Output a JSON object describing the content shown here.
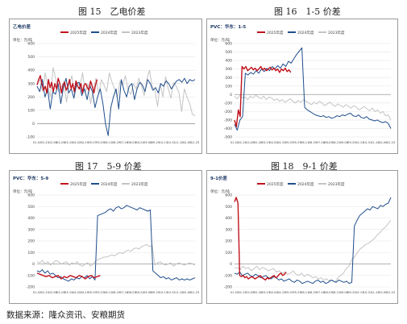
{
  "figures": [
    {
      "caption": "图 15　乙电价差"
    },
    {
      "caption": "图 16　1-5 价差"
    },
    {
      "caption": "图 17　5-9 价差"
    },
    {
      "caption": "图 18　9-1 价差"
    }
  ],
  "source_note": "数据来源：隆众资讯、安粮期货",
  "colors": {
    "s2025": "#c0121c",
    "s2024": "#1f4e8c",
    "s2023": "#c4c4c4",
    "grid": "#e6e6e6"
  },
  "chart_data": [
    {
      "type": "line",
      "title": "乙电价差",
      "unit": "单位：元/吨",
      "ylim": [
        -100,
        600
      ],
      "yticks": [
        -100,
        0,
        100,
        200,
        300,
        400,
        500,
        600
      ],
      "xticks": [
        "01-02",
        "01-21",
        "02-08",
        "02-26",
        "03-15",
        "04-02",
        "04-19",
        "05-07",
        "05-25",
        "06-11",
        "06-29",
        "07-16",
        "08-03",
        "08-21",
        "09-08",
        "09-25",
        "10-13",
        "10-31",
        "11-18",
        "12-06",
        "12-23"
      ],
      "series": [
        {
          "name": "2025年度",
          "color": "#c0121c",
          "start": 0.0,
          "values": [
            290,
            330,
            360,
            300,
            250,
            280,
            230,
            330,
            270,
            310,
            240,
            300,
            260,
            340,
            300,
            230,
            290,
            310,
            250,
            280,
            330,
            260,
            300,
            240,
            320,
            280,
            260,
            300,
            230,
            290,
            300,
            270,
            250,
            320,
            280,
            230,
            290,
            330
          ]
        },
        {
          "name": "2024年度",
          "color": "#1f4e8c",
          "start": 0.0,
          "values": [
            280,
            240,
            330,
            200,
            260,
            110,
            240,
            220,
            300,
            150,
            270,
            340,
            230,
            260,
            190,
            300,
            310,
            210,
            260,
            180,
            290,
            240,
            120,
            200,
            260,
            150,
            0,
            -90,
            120,
            200,
            260,
            110,
            330,
            250,
            200,
            280,
            300,
            180,
            260,
            310,
            290,
            240,
            330,
            300,
            250,
            270,
            230,
            300,
            280,
            320,
            300,
            260,
            290,
            320,
            330,
            310,
            340,
            300,
            330,
            320,
            330
          ]
        },
        {
          "name": "2023年度",
          "color": "#c4c4c4",
          "start": 0.0,
          "values": [
            300,
            330,
            240,
            380,
            280,
            200,
            420,
            330,
            240,
            270,
            320,
            160,
            290,
            360,
            210,
            310,
            280,
            380,
            230,
            300,
            150,
            260,
            340,
            220,
            330,
            290,
            240,
            380,
            310,
            260,
            200,
            320,
            290,
            360,
            250,
            220,
            300,
            260,
            340,
            280,
            210,
            330,
            400,
            280,
            250,
            130,
            300,
            200,
            350,
            260,
            190,
            310,
            280,
            230,
            90,
            260,
            200,
            150,
            70,
            60
          ]
        }
      ]
    },
    {
      "type": "line",
      "title": "PVC：华东：1-5",
      "unit": "单位：元/吨",
      "ylim": [
        -500,
        600
      ],
      "yticks": [
        -500,
        -400,
        -300,
        -200,
        -100,
        0,
        100,
        200,
        300,
        400,
        500,
        600
      ],
      "xticks": [
        "01-02",
        "01-21",
        "02-08",
        "02-26",
        "03-15",
        "04-02",
        "04-19",
        "05-07",
        "05-25",
        "06-11",
        "06-29",
        "07-16",
        "08-03",
        "08-21",
        "09-08",
        "09-25",
        "10-13",
        "10-31",
        "11-18",
        "12-06",
        "12-23"
      ],
      "series": [
        {
          "name": "2025年度",
          "color": "#c0121c",
          "start": 0.0,
          "values": [
            -300,
            -380,
            -180,
            -260,
            330,
            300,
            330,
            280,
            300,
            320,
            290,
            310,
            280,
            300,
            330,
            290,
            310,
            280,
            300,
            320,
            290,
            310,
            280,
            300,
            260,
            300,
            280,
            310,
            270,
            290,
            260
          ]
        },
        {
          "name": "2024年度",
          "color": "#1f4e8c",
          "start": 0.0,
          "values": [
            -350,
            -420,
            -300,
            -260,
            250,
            230,
            260,
            240,
            280,
            250,
            300,
            270,
            310,
            280,
            330,
            300,
            340,
            310,
            360,
            330,
            390,
            370,
            420,
            470,
            510,
            550,
            -150,
            -180,
            -200,
            -220,
            -240,
            -250,
            -260,
            -250,
            -270,
            -260,
            -280,
            -270,
            -250,
            -260,
            -240,
            -250,
            -230,
            -220,
            -250,
            -260,
            -240,
            -270,
            -280,
            -260,
            -290,
            -300,
            -310,
            -300,
            -320,
            -330,
            -320,
            -340,
            -400
          ]
        },
        {
          "name": "2023年度",
          "color": "#c4c4c4",
          "start": 0.0,
          "values": [
            -20,
            -50,
            -10,
            -40,
            -30,
            -60,
            -20,
            -40,
            -10,
            -30,
            -50,
            -20,
            -60,
            -30,
            -40,
            -70,
            -50,
            -80,
            -60,
            -90,
            -70,
            -50,
            -80,
            -100,
            -70,
            -90,
            -60,
            -80,
            -100,
            -120,
            -90,
            -110,
            -80,
            -100,
            -130,
            -110,
            -90,
            -120,
            -140,
            -110,
            -130,
            -150,
            -120,
            -140,
            -160,
            -130,
            -150,
            -180,
            -160,
            -140,
            -170,
            -190,
            -160,
            -200,
            -180,
            -220,
            -200,
            -250,
            -240,
            -300
          ]
        }
      ]
    },
    {
      "type": "line",
      "title": "PVC：华东：5-9",
      "unit": "单位：元/吨",
      "ylim": [
        -200,
        600
      ],
      "yticks": [
        -200,
        -100,
        0,
        100,
        200,
        300,
        400,
        500,
        600
      ],
      "xticks": [
        "01-02",
        "01-21",
        "02-08",
        "02-26",
        "03-15",
        "04-02",
        "04-19",
        "05-07",
        "05-25",
        "06-11",
        "06-29",
        "07-16",
        "08-03",
        "08-21",
        "09-08",
        "09-25",
        "10-13",
        "10-31",
        "11-18",
        "12-06",
        "12-23"
      ],
      "series": [
        {
          "name": "2025年度",
          "color": "#c0121c",
          "start": 0.0,
          "values": [
            -80,
            -90,
            -100,
            -110,
            -100,
            -120,
            -110,
            -100,
            -130,
            -110,
            -120,
            -100,
            -110,
            -120,
            -100,
            -110,
            -130,
            -110,
            -100,
            -120,
            -110,
            -100
          ]
        },
        {
          "name": "2024年度",
          "color": "#1f4e8c",
          "start": 0.0,
          "values": [
            -60,
            -70,
            -50,
            -80,
            -60,
            -90,
            -80,
            -100,
            -120,
            -110,
            -130,
            -140,
            -150,
            -130,
            -140,
            -120,
            -130,
            -110,
            -120,
            -100,
            -130,
            -110,
            -140,
            420,
            430,
            440,
            450,
            470,
            480,
            460,
            490,
            500,
            480,
            490,
            510,
            500,
            490,
            480,
            470,
            490,
            480,
            470,
            460,
            470,
            -60,
            -80,
            -100,
            -120,
            -110,
            -130,
            -120,
            -140,
            -130,
            -120,
            -140,
            -130,
            -140,
            -130,
            -140,
            -130,
            -120
          ]
        },
        {
          "name": "2023年度",
          "color": "#c4c4c4",
          "start": 0.0,
          "values": [
            20,
            10,
            30,
            0,
            20,
            -10,
            10,
            30,
            20,
            0,
            10,
            20,
            -10,
            10,
            0,
            20,
            -10,
            -20,
            0,
            10,
            -20,
            0,
            30,
            40,
            50,
            60,
            60,
            70,
            80,
            70,
            90,
            100,
            90,
            110,
            120,
            110,
            130,
            140,
            130,
            150,
            160,
            170,
            150,
            160,
            -10,
            10,
            20,
            0,
            -10,
            0,
            10,
            -20,
            0,
            10,
            0,
            -10,
            0,
            10,
            0,
            -10
          ]
        }
      ]
    },
    {
      "type": "line",
      "title": "9-1价差",
      "unit": "单位：元/吨",
      "ylim": [
        -200,
        600
      ],
      "yticks": [
        -200,
        -100,
        0,
        100,
        200,
        300,
        400,
        500,
        600
      ],
      "xticks": [
        "01-02",
        "01-21",
        "02-08",
        "02-26",
        "03-15",
        "04-02",
        "04-19",
        "05-07",
        "05-25",
        "06-11",
        "06-29",
        "07-16",
        "08-03",
        "08-21",
        "09-08",
        "09-25",
        "10-13",
        "10-31",
        "11-18",
        "12-06",
        "12-23"
      ],
      "series": [
        {
          "name": "2025年度",
          "color": "#c0121c",
          "start": 0.0,
          "values": [
            540,
            580,
            530,
            -100,
            -110,
            -100,
            -120,
            -110,
            -130,
            -120,
            -110,
            -120,
            -130,
            -120,
            -110,
            -100,
            -120,
            -130,
            -140,
            -120,
            -130,
            -120,
            -110,
            -100,
            -120,
            -110,
            -90,
            -80,
            -100,
            -90,
            -70
          ]
        },
        {
          "name": "2024年度",
          "color": "#1f4e8c",
          "start": 0.0,
          "values": [
            -80,
            -90,
            -70,
            -100,
            -90,
            -80,
            -100,
            -110,
            -90,
            -100,
            -120,
            -110,
            -100,
            -120,
            -130,
            -110,
            -120,
            -140,
            -130,
            -150,
            -140,
            -130,
            -150,
            -160,
            -140,
            -150,
            -170,
            -160,
            -150,
            -160,
            -170,
            -150,
            -140,
            -160,
            -150,
            -170,
            -160,
            -140,
            -150,
            -160,
            -140,
            -150,
            -160,
            -150,
            -170,
            -160,
            330,
            380,
            420,
            440,
            460,
            480,
            470,
            500,
            490,
            480,
            510,
            500,
            520,
            530,
            580
          ]
        },
        {
          "name": "2023年度",
          "color": "#c4c4c4",
          "start": 0.0,
          "values": [
            -40,
            -30,
            -50,
            -20,
            -40,
            -30,
            -60,
            -40,
            -20,
            -50,
            -30,
            -40,
            -60,
            -50,
            -40,
            -70,
            -60,
            -80,
            -70,
            -90,
            -80,
            -60,
            -90,
            -100,
            -80,
            -110,
            -90,
            -100,
            -120,
            -110,
            -130,
            -120,
            -140,
            -130,
            -150,
            -140,
            -160,
            -120,
            -100,
            -80,
            -40,
            -20,
            40,
            60,
            100,
            130,
            150,
            170,
            180,
            200,
            220,
            250,
            270,
            300,
            320,
            350,
            380
          ]
        }
      ]
    }
  ]
}
